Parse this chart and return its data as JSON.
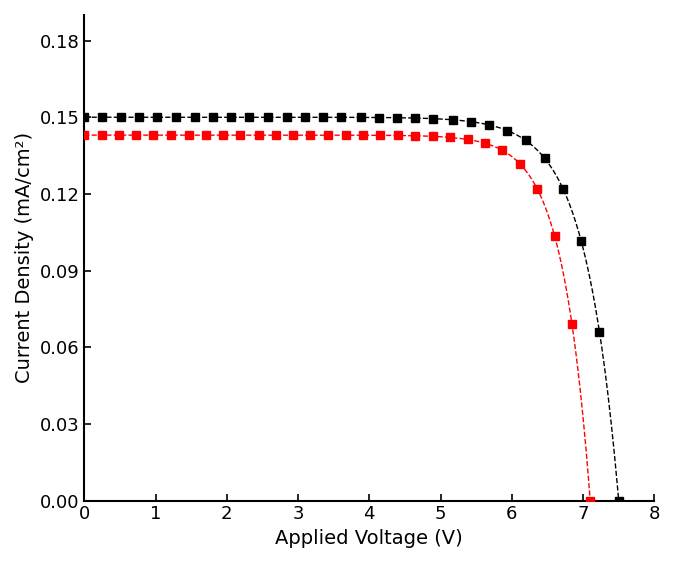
{
  "title": "",
  "xlabel": "Applied Voltage (V)",
  "ylabel": "Current Density (mA/cm²)",
  "xlim": [
    0,
    8
  ],
  "ylim": [
    0,
    0.19
  ],
  "xticks": [
    0,
    1,
    2,
    3,
    4,
    5,
    6,
    7,
    8
  ],
  "yticks": [
    0.0,
    0.03,
    0.06,
    0.09,
    0.12,
    0.15,
    0.18
  ],
  "black_Jsc": 0.15,
  "black_Voc": 7.5,
  "black_n": 18.0,
  "red_Jsc": 0.143,
  "red_Voc": 7.1,
  "red_n": 15.0,
  "black_color": "#000000",
  "red_color": "#ff0000",
  "marker": "s",
  "markersize": 6,
  "linestyle": "--",
  "linewidth": 1.0,
  "xlabel_fontsize": 14,
  "ylabel_fontsize": 14,
  "tick_fontsize": 13,
  "n_markers": 30,
  "figsize": [
    6.75,
    5.63
  ],
  "dpi": 100
}
